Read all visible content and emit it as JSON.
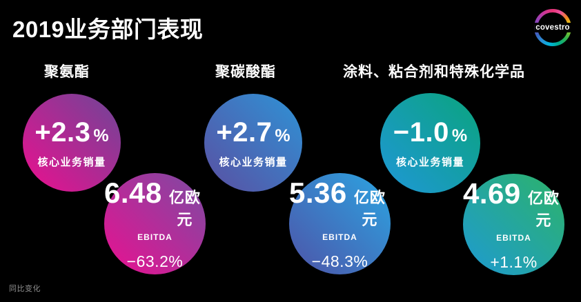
{
  "title": "2019业务部门表现",
  "percent_sign": "%",
  "footer_note": "同比变化",
  "logo": {
    "text": "covestro",
    "ring_colors": [
      "#e73475 0deg",
      "#ec4fa0 25deg",
      "#f0861f 55deg",
      "#e7d219 78deg",
      "#8ec72d 100deg",
      "#2fb34b 130deg",
      "#00ab8e 160deg",
      "#00b5dc 190deg",
      "#2a8fd5 220deg",
      "#3b63c0 245deg",
      "#6a4fc2 270deg",
      "#9a41b5 300deg",
      "#c93597 330deg",
      "#e73475 360deg"
    ]
  },
  "segments": [
    {
      "name": "聚氨酯",
      "sales_change": "+2.3",
      "sales_label": "核心业务销量",
      "ebitda_value": "6.48",
      "ebitda_unit": "亿欧元",
      "ebitda_label": "EBITDA",
      "ebitda_change": "−63.2%",
      "sales_gradient": {
        "from": "#ec0f8f",
        "to": "#6d4697"
      },
      "ebitda_gradient": {
        "from": "#ea1090",
        "to": "#7b4ba3"
      }
    },
    {
      "name": "聚碳酸酯",
      "sales_change": "+2.7",
      "sales_label": "核心业务销量",
      "ebitda_value": "5.36",
      "ebitda_unit": "亿欧元",
      "ebitda_label": "EBITDA",
      "ebitda_change": "−48.3%",
      "sales_gradient": {
        "from": "#5a4fa2",
        "to": "#2e93d6"
      },
      "ebitda_gradient": {
        "from": "#4e53a8",
        "to": "#2ba5e2"
      }
    },
    {
      "name": "涂料、粘合剂和特殊化学品",
      "sales_change": "−1.0",
      "sales_label": "核心业务销量",
      "ebitda_value": "4.69",
      "ebitda_unit": "亿欧元",
      "ebitda_label": "EBITDA",
      "ebitda_change": "+1.1%",
      "sales_gradient": {
        "from": "#1f97d7",
        "to": "#0aa47d"
      },
      "ebitda_gradient": {
        "from": "#1e9ad2",
        "to": "#2cb368"
      }
    }
  ],
  "chart_data": {
    "type": "table",
    "title": "2019业务部门表现",
    "categories": [
      "聚氨酯",
      "聚碳酸酯",
      "涂料、粘合剂和特殊化学品"
    ],
    "series": [
      {
        "name": "核心业务销量 同比变化 (%)",
        "values": [
          2.3,
          2.7,
          -1.0
        ]
      },
      {
        "name": "EBITDA (亿欧元)",
        "values": [
          6.48,
          5.36,
          4.69
        ]
      },
      {
        "name": "EBITDA 同比变化 (%)",
        "values": [
          -63.2,
          -48.3,
          1.1
        ]
      }
    ],
    "footnote": "同比变化",
    "legend_position": "none",
    "grid": false
  }
}
